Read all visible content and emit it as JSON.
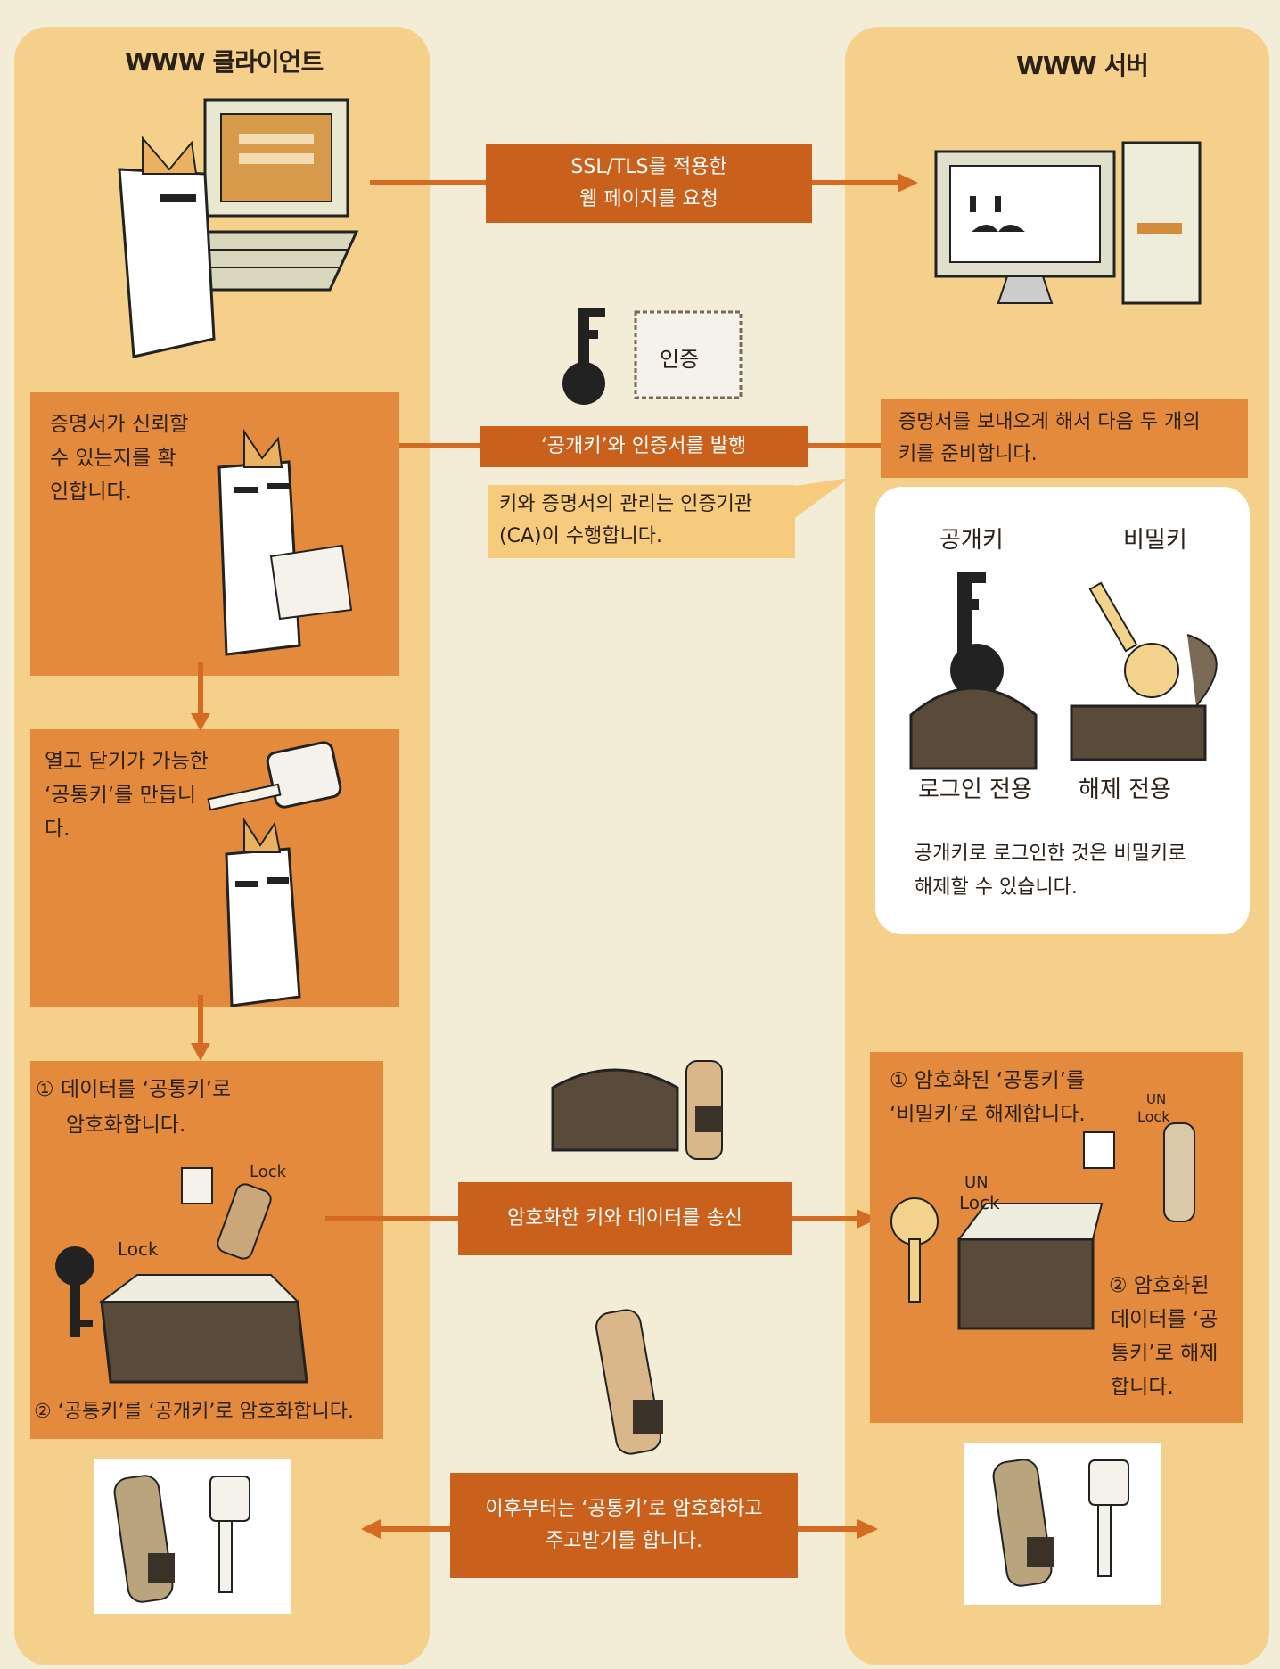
{
  "client": {
    "title": "WWW 클라이언트"
  },
  "server": {
    "title": "WWW 서버"
  },
  "flow": {
    "request": {
      "line1": "SSL/TLS를 적용한",
      "line2": "웹 페이지를 요청"
    },
    "issue": {
      "label": "‘공개키’와 인증서를 발행"
    },
    "ca_note": {
      "line1": "키와 증명서의 관리는 인증기관",
      "line2": "(CA)이 수행합니다."
    },
    "cert_stamp": "인증",
    "server_prepare": {
      "line1": "증명서를 보내오게 해서 다음 두 개의",
      "line2": "키를 준비합니다."
    },
    "send": {
      "label": "암호화한 키와 데이터를 송신"
    },
    "after": {
      "line1": "이후부터는 ‘공통키’로 암호화하고",
      "line2": "주고받기를 합니다."
    }
  },
  "client_steps": {
    "verify": {
      "line1": "증명서가 신뢰할",
      "line2": "수 있는지를 확",
      "line3": "인합니다."
    },
    "make_key": {
      "line1": "열고 닫기가 가능한",
      "line2": "‘공통키’를 만듭니",
      "line3": "다."
    },
    "encrypt": {
      "step1": "① 데이터를 ‘공통키’로",
      "step1b": "암호화합니다.",
      "step2": "② ‘공통키’를 ‘공개키’로 암호화합니다."
    }
  },
  "server_keys": {
    "public_key_label": "공개키",
    "private_key_label": "비밀키",
    "public_use": "로그인 전용",
    "private_use": "해제 전용",
    "note_line1": "공개키로 로그인한 것은 비밀키로",
    "note_line2": "해제할 수 있습니다."
  },
  "server_steps": {
    "step1a": "① 암호화된 ‘공통키’를",
    "step1b": "‘비밀키’로 해제합니다.",
    "step2a": "② 암호화된",
    "step2b": "데이터를 ‘공",
    "step2c": "통키’로 해제",
    "step2d": "합니다."
  },
  "doodles": {
    "lock": "Lock",
    "unlock_top": "UN",
    "unlock_bottom": "Lock"
  },
  "colors": {
    "column_bg": "#f4d08a",
    "step_box": "#e48a3c",
    "dark_label": "#c9611c",
    "arrow": "#d56a22"
  }
}
